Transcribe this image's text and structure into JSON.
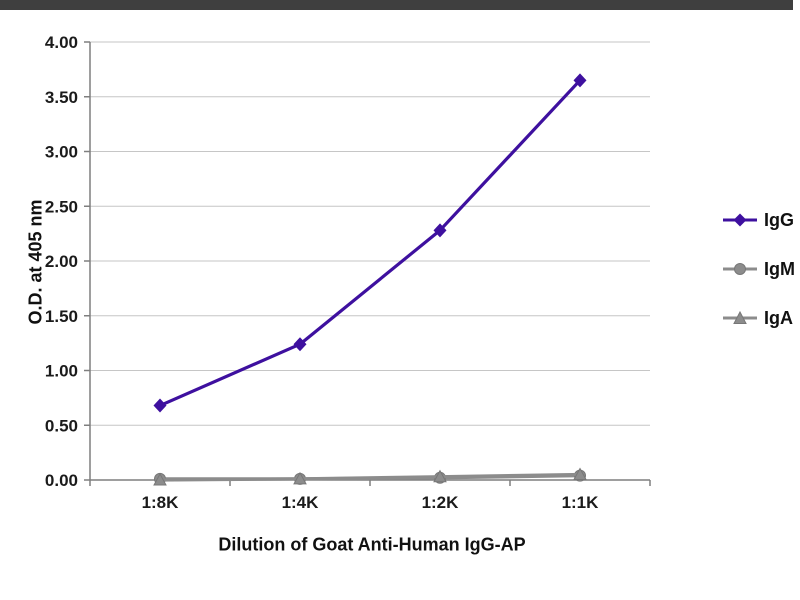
{
  "top_bar": {
    "color": "#3f3f3f"
  },
  "chart_data": {
    "type": "line",
    "title": "",
    "xlabel": "Dilution of Goat Anti-Human IgG-AP",
    "ylabel": "O.D. at 405 nm",
    "categories": [
      "1:8K",
      "1:4K",
      "1:2K",
      "1:1K"
    ],
    "series": [
      {
        "name": "IgG",
        "marker": "diamond",
        "color": "#3e109f",
        "values": [
          0.68,
          1.24,
          2.28,
          3.65
        ]
      },
      {
        "name": "IgM",
        "marker": "circle",
        "color": "#8c8c8c",
        "values": [
          0.01,
          0.01,
          0.02,
          0.04
        ]
      },
      {
        "name": "IgA",
        "marker": "triangle",
        "color": "#8c8c8c",
        "values": [
          0.0,
          0.01,
          0.03,
          0.05
        ]
      }
    ],
    "ylim": [
      0,
      4
    ],
    "ytick_step": 0.5,
    "yticks": [
      "0.00",
      "0.50",
      "1.00",
      "1.50",
      "2.00",
      "2.50",
      "3.00",
      "3.50",
      "4.00"
    ],
    "grid": true,
    "grid_color": "#c6c6c6",
    "axis_color": "#7f7f7f",
    "legend_position": "right"
  }
}
